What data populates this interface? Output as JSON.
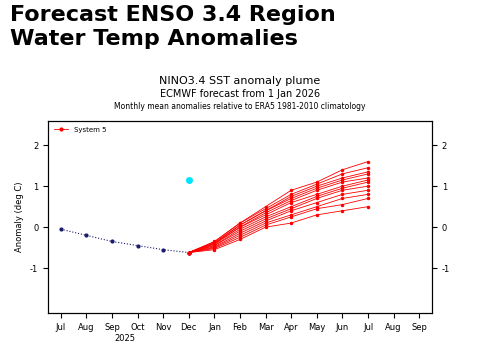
{
  "slide_title": "Forecast ENSO 3.4 Region\nWater Temp Anomalies",
  "chart_data": {
    "type": "line",
    "title": "NINO3.4 SST anomaly plume",
    "subtitle": "ECMWF forecast from 1 Jan 2026",
    "note": "Monthly mean anomalies relative to ERA5 1981-2010 climatology",
    "y_label": "Anomaly (deg C)",
    "year_label": "2025",
    "categories": [
      "Jul",
      "Aug",
      "Sep",
      "Oct",
      "Nov",
      "Dec",
      "Jan",
      "Feb",
      "Mar",
      "Apr",
      "May",
      "Jun",
      "Jul",
      "Aug",
      "Sep"
    ],
    "ylim": [
      -2.1,
      2.6
    ],
    "yticks": [
      -1,
      0,
      1,
      2
    ],
    "y2lim": [
      -2.1,
      2.6
    ],
    "y2ticks": [
      -1,
      0,
      1,
      2
    ],
    "legend": "upper left",
    "series": [
      {
        "color": "#1a1a6e",
        "marker": "o",
        "line_style": "dotted",
        "values": [
          -0.05,
          -0.2,
          -0.35,
          -0.45,
          -0.55,
          -0.62,
          null,
          null,
          null,
          null,
          null,
          null,
          null,
          null,
          null
        ]
      },
      {
        "type": "scatter",
        "color": "#00e5ff",
        "marker": "o",
        "values": [
          null,
          null,
          null,
          null,
          null,
          1.15,
          null,
          null,
          null,
          null,
          null,
          null,
          null,
          null,
          null
        ]
      },
      {
        "name": "System 5",
        "color": "#ff0000",
        "marker": "o",
        "line_style": "solid",
        "members": [
          [
            null,
            null,
            null,
            null,
            null,
            -0.62,
            -0.55,
            -0.3,
            0.0,
            0.1,
            0.3,
            0.4,
            0.5,
            null,
            null
          ],
          [
            null,
            null,
            null,
            null,
            null,
            -0.62,
            -0.52,
            -0.25,
            0.05,
            0.25,
            0.45,
            0.55,
            0.7,
            null,
            null
          ],
          [
            null,
            null,
            null,
            null,
            null,
            -0.62,
            -0.5,
            -0.2,
            0.1,
            0.3,
            0.5,
            0.7,
            0.8,
            null,
            null
          ],
          [
            null,
            null,
            null,
            null,
            null,
            -0.62,
            -0.48,
            -0.15,
            0.15,
            0.4,
            0.6,
            0.8,
            0.9,
            null,
            null
          ],
          [
            null,
            null,
            null,
            null,
            null,
            -0.62,
            -0.45,
            -0.1,
            0.2,
            0.45,
            0.7,
            0.9,
            1.0,
            null,
            null
          ],
          [
            null,
            null,
            null,
            null,
            null,
            -0.62,
            -0.45,
            -0.05,
            0.25,
            0.5,
            0.75,
            0.95,
            1.1,
            null,
            null
          ],
          [
            null,
            null,
            null,
            null,
            null,
            -0.62,
            -0.42,
            0.0,
            0.3,
            0.6,
            0.8,
            1.0,
            1.15,
            null,
            null
          ],
          [
            null,
            null,
            null,
            null,
            null,
            -0.62,
            -0.4,
            0.0,
            0.35,
            0.65,
            0.9,
            1.1,
            1.2,
            null,
            null
          ],
          [
            null,
            null,
            null,
            null,
            null,
            -0.62,
            -0.4,
            0.05,
            0.4,
            0.7,
            0.95,
            1.15,
            1.3,
            null,
            null
          ],
          [
            null,
            null,
            null,
            null,
            null,
            -0.62,
            -0.38,
            0.05,
            0.4,
            0.75,
            1.0,
            1.2,
            1.35,
            null,
            null
          ],
          [
            null,
            null,
            null,
            null,
            null,
            -0.62,
            -0.36,
            0.1,
            0.45,
            0.8,
            1.05,
            1.3,
            1.45,
            null,
            null
          ],
          [
            null,
            null,
            null,
            null,
            null,
            -0.62,
            -0.35,
            0.1,
            0.5,
            0.9,
            1.1,
            1.4,
            1.6,
            null,
            null
          ]
        ]
      }
    ]
  }
}
